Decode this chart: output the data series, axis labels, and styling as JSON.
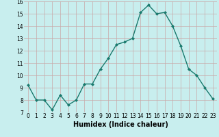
{
  "x": [
    0,
    1,
    2,
    3,
    4,
    5,
    6,
    7,
    8,
    9,
    10,
    11,
    12,
    13,
    14,
    15,
    16,
    17,
    18,
    19,
    20,
    21,
    22,
    23
  ],
  "y": [
    9.2,
    8.0,
    8.0,
    7.2,
    8.4,
    7.6,
    8.0,
    9.3,
    9.3,
    10.5,
    11.4,
    12.5,
    12.7,
    13.0,
    15.1,
    15.7,
    15.0,
    15.1,
    14.0,
    12.4,
    10.5,
    10.0,
    9.0,
    8.1
  ],
  "line_color": "#1a7a6e",
  "marker": "D",
  "marker_size": 2.0,
  "bg_color": "#c8eeee",
  "grid_color": "#c8a8a8",
  "xlabel": "Humidex (Indice chaleur)",
  "xlim": [
    -0.5,
    23.5
  ],
  "ylim": [
    7,
    16
  ],
  "yticks": [
    7,
    8,
    9,
    10,
    11,
    12,
    13,
    14,
    15,
    16
  ],
  "xticks": [
    0,
    1,
    2,
    3,
    4,
    5,
    6,
    7,
    8,
    9,
    10,
    11,
    12,
    13,
    14,
    15,
    16,
    17,
    18,
    19,
    20,
    21,
    22,
    23
  ],
  "tick_fontsize": 5.5,
  "xlabel_fontsize": 7.0,
  "linewidth": 1.0
}
